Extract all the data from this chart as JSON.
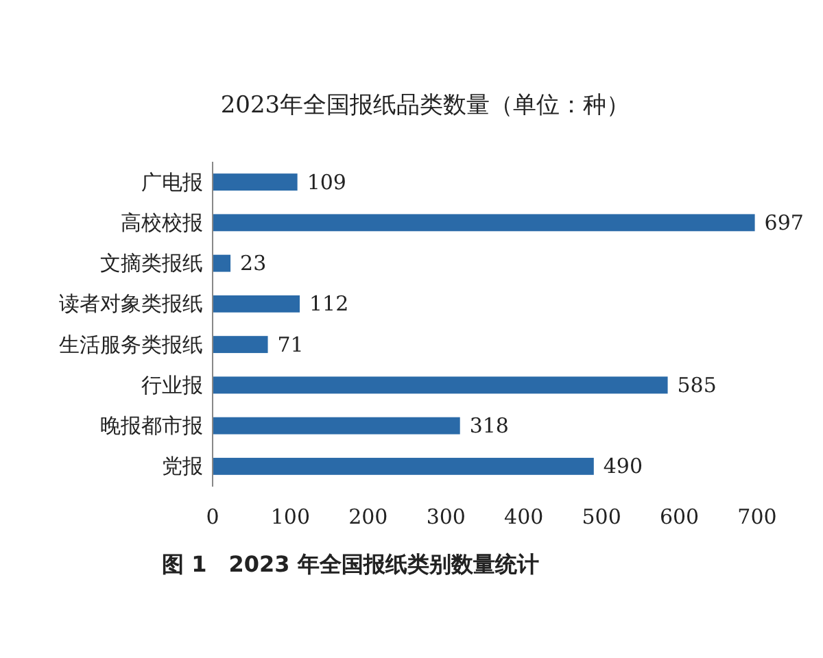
{
  "chart_data": {
    "type": "bar",
    "orientation": "horizontal",
    "title": "2023年全国报纸品类数量（单位：种）",
    "categories": [
      "广电报",
      "高校校报",
      "文摘类报纸",
      "读者对象类报纸",
      "生活服务类报纸",
      "行业报",
      "晚报都市报",
      "党报"
    ],
    "values": [
      109,
      697,
      23,
      112,
      71,
      585,
      318,
      490
    ],
    "color": "#2a6aa8",
    "xlim": [
      0,
      700
    ],
    "xticks": [
      0,
      100,
      200,
      300,
      400,
      500,
      600,
      700
    ],
    "data_labels": true,
    "annotations": [
      "图 1　2023 年全国报纸类别数量统计"
    ]
  }
}
